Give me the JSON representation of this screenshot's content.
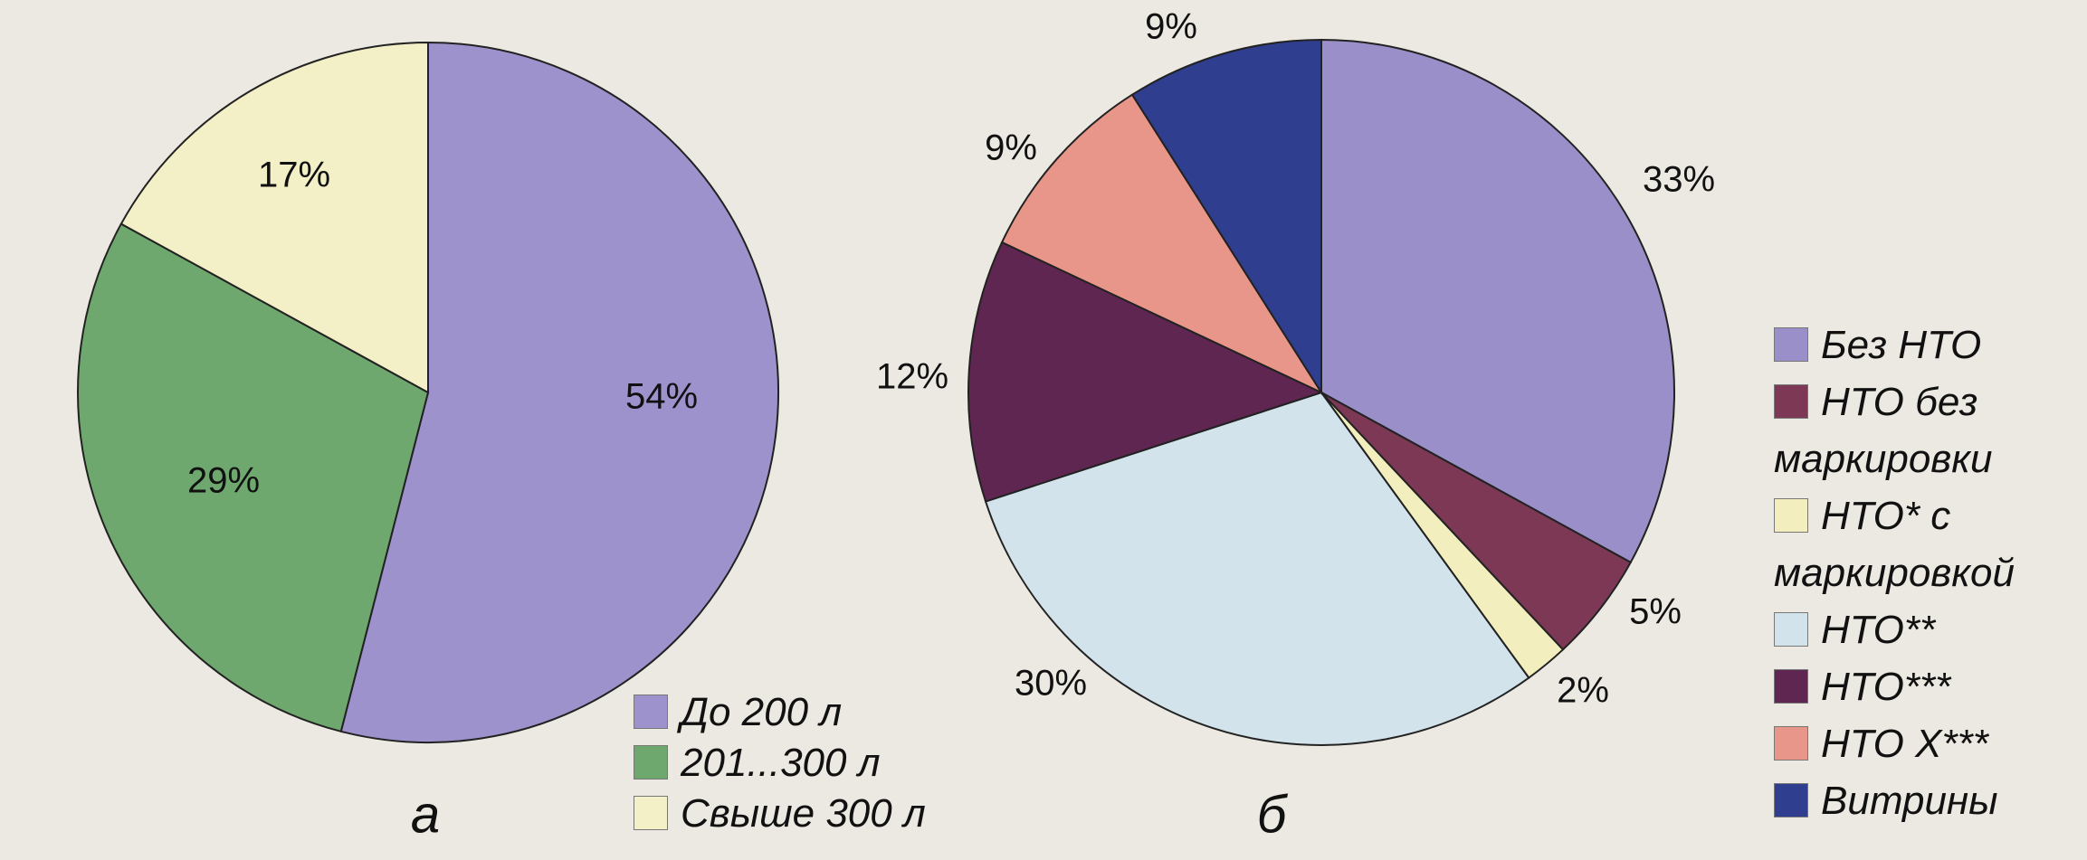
{
  "chart_data": [
    {
      "type": "pie",
      "caption": "а",
      "categories": [
        "До 200 л",
        "201...300 л",
        "Свыше 300 л"
      ],
      "values": [
        54,
        29,
        17
      ],
      "value_labels": [
        "54%",
        "29%",
        "17%"
      ],
      "colors": [
        "#9d92cc",
        "#6ea86e",
        "#f3efc6"
      ]
    },
    {
      "type": "pie",
      "caption": "б",
      "categories": [
        "Без НТО",
        "НТО без маркировки",
        "НТО* с маркировкой",
        "НТО**",
        "НТО***",
        "НТО Х***",
        "Витрины"
      ],
      "values": [
        33,
        5,
        2,
        30,
        12,
        9,
        9
      ],
      "value_labels": [
        "33%",
        "5%",
        "2%",
        "30%",
        "12%",
        "9%",
        "9%"
      ],
      "colors": [
        "#9a8fc8",
        "#7d3856",
        "#f2eebe",
        "#d2e3ec",
        "#5f2652",
        "#e9968a",
        "#2f3e8e"
      ]
    }
  ]
}
